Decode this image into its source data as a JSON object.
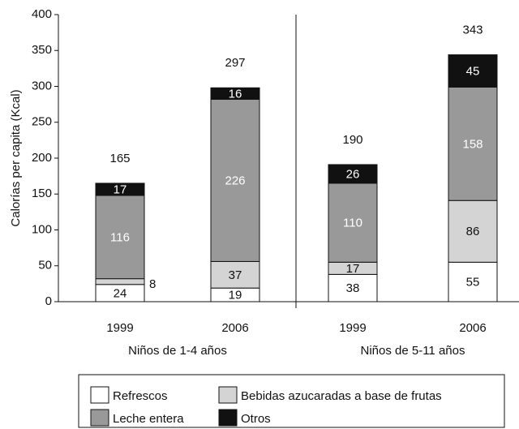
{
  "chart_data": {
    "type": "stacked_bar",
    "y_label": "Calorías per capita (Kcal)",
    "categories": [
      "1999",
      "2006",
      "1999",
      "2006"
    ],
    "groups": [
      "Niños de 1-4 años",
      "Niños de 5-11 años"
    ],
    "series": [
      {
        "name": "Refrescos",
        "color": "#ffffff",
        "label_color": "#111111",
        "values": [
          24,
          19,
          38,
          55
        ]
      },
      {
        "name": "Bebidas azucaradas a base de frutas",
        "color": "#d4d4d4",
        "label_color": "#111111",
        "values": [
          8,
          37,
          17,
          86
        ]
      },
      {
        "name": "Leche entera",
        "color": "#999999",
        "label_color": "#ffffff",
        "values": [
          116,
          226,
          110,
          158
        ]
      },
      {
        "name": "Otros",
        "color": "#111111",
        "label_color": "#ffffff",
        "values": [
          17,
          16,
          26,
          45
        ]
      }
    ],
    "totals": [
      165,
      297,
      190,
      343
    ],
    "ylim": [
      0,
      400
    ],
    "yticks": [
      0,
      50,
      100,
      150,
      200,
      250,
      300,
      350,
      400
    ]
  }
}
